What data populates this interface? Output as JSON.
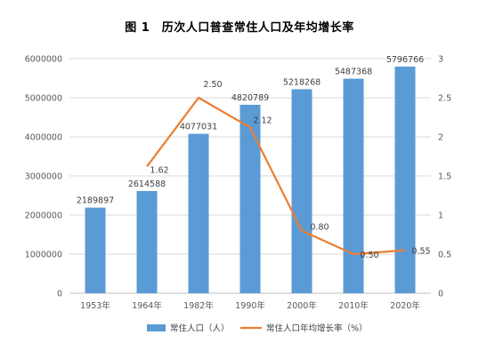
{
  "chart_data": {
    "type": "bar",
    "title": "图 1　历次人口普查常住人口及年均增长率",
    "categories": [
      "1953年",
      "1964年",
      "1982年",
      "1990年",
      "2000年",
      "2010年",
      "2020年"
    ],
    "series": [
      {
        "name": "常住人口（人）",
        "type": "bar",
        "axis": "left",
        "color": "#5b9bd5",
        "values": [
          2189897,
          2614588,
          4077031,
          4820789,
          5218268,
          5487368,
          5796766
        ],
        "labels": [
          "2189897",
          "2614588",
          "4077031",
          "4820789",
          "5218268",
          "5487368",
          "5796766"
        ]
      },
      {
        "name": "常住人口年均增长率（%）",
        "type": "line",
        "axis": "right",
        "color": "#ed7d31",
        "values": [
          null,
          1.62,
          2.5,
          2.12,
          0.8,
          0.5,
          0.55
        ],
        "labels": [
          null,
          "1.62",
          "2.50",
          "2.12",
          "0.80",
          "0.50",
          "0.55"
        ]
      }
    ],
    "y_left": {
      "range": [
        0,
        6000000
      ],
      "ticks": [
        0,
        1000000,
        2000000,
        3000000,
        4000000,
        5000000,
        6000000
      ],
      "tick_labels": [
        "0",
        "1000000",
        "2000000",
        "3000000",
        "4000000",
        "5000000",
        "6000000"
      ]
    },
    "y_right": {
      "range": [
        0,
        3
      ],
      "ticks": [
        0,
        0.5,
        1,
        1.5,
        2,
        2.5,
        3
      ],
      "tick_labels": [
        "0",
        "0.5",
        "1",
        "1.5",
        "2",
        "2.5",
        "3"
      ]
    },
    "grid": true,
    "legend_position": "bottom"
  }
}
